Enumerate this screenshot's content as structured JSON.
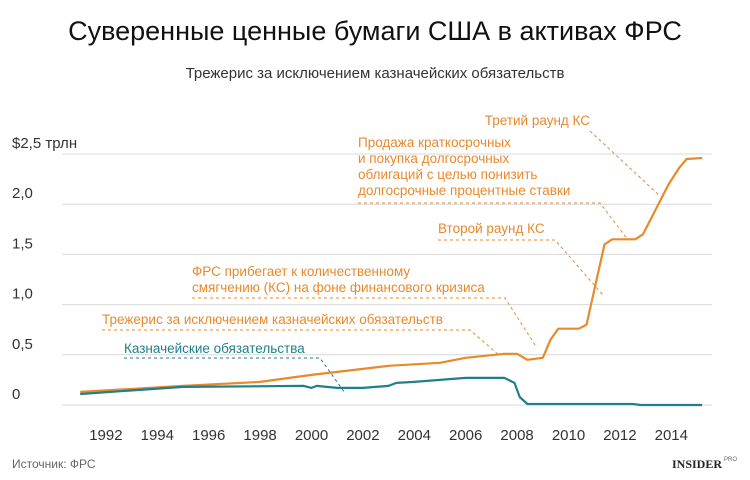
{
  "chart_data": {
    "type": "line",
    "title": "Суверенные ценные бумаги США в активах ФРС",
    "subtitle": "Трежерис за исключением казначейских обязательств",
    "source": "Источник: ФРС",
    "brand": "INSIDER",
    "brand_suffix": "PRO",
    "xlim": [
      1990,
      2016
    ],
    "xticks": [
      1992,
      1994,
      1996,
      1998,
      2000,
      2002,
      2004,
      2006,
      2008,
      2010,
      2012,
      2014
    ],
    "ylim": [
      0,
      2.5
    ],
    "yticks": [
      0,
      {
        "value": 0.5,
        "label": "0,5"
      },
      {
        "value": 1,
        "label": "1,0"
      },
      {
        "value": 1.5,
        "label": "1,5"
      },
      {
        "value": 2,
        "label": "2,0"
      },
      {
        "value": 2.5,
        "label": "$2,5 трлн"
      }
    ],
    "grid": true,
    "series": [
      {
        "name": "Трежерис за исключением казначейских обязательств",
        "color": "#e8892b",
        "x": [
          1991,
          1995,
          1998,
          2000,
          2002,
          2003,
          2005,
          2006,
          2007.5,
          2008,
          2008.4,
          2009,
          2009.3,
          2009.6,
          2010.4,
          2010.7,
          2011.4,
          2011.7,
          2012.6,
          2012.9,
          2013.9,
          2014.3,
          2014.6,
          2015.2
        ],
        "values": [
          0.13,
          0.19,
          0.23,
          0.3,
          0.36,
          0.39,
          0.42,
          0.47,
          0.51,
          0.51,
          0.45,
          0.47,
          0.65,
          0.76,
          0.76,
          0.8,
          1.6,
          1.65,
          1.65,
          1.7,
          2.2,
          2.36,
          2.45,
          2.46
        ]
      },
      {
        "name": "Казначейские обязательства",
        "color": "#1f7f8a",
        "x": [
          1991,
          1995,
          1999.7,
          2000,
          2000.2,
          2001,
          2002,
          2003,
          2003.3,
          2004,
          2006,
          2007.5,
          2007.9,
          2008.1,
          2008.4,
          2009,
          2012.5,
          2012.8,
          2015.2
        ],
        "values": [
          0.11,
          0.18,
          0.19,
          0.17,
          0.19,
          0.17,
          0.17,
          0.19,
          0.22,
          0.23,
          0.27,
          0.27,
          0.22,
          0.08,
          0.01,
          0.01,
          0.01,
          0,
          0
        ]
      }
    ],
    "annotations": [
      [
        "Третий раунд КС"
      ],
      [
        "Продажа краткосрочных",
        "и покупка долгосрочных",
        "облигаций с целью понизить",
        "долгосрочные процентные ставки"
      ],
      [
        "Второй раунд КС"
      ],
      [
        "ФРС прибегает к количественному",
        "смягчению (КС) на фоне финансового кризиса"
      ]
    ]
  }
}
